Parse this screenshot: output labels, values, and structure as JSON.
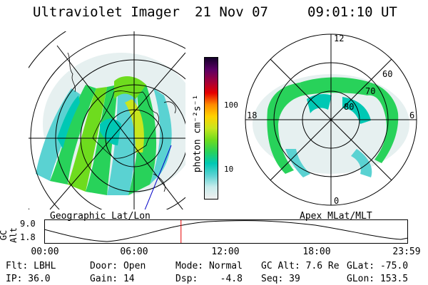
{
  "header": {
    "title": "Ultraviolet Imager",
    "date": "21 Nov 07",
    "time": "09:01:10 UT"
  },
  "colorbar": {
    "label": "photon cm⁻²s⁻¹",
    "ticks": [
      "100",
      "10"
    ],
    "colors": [
      "#f0f0f0",
      "#c8ecec",
      "#5ad2d2",
      "#00c8b4",
      "#28d25a",
      "#6edc1e",
      "#c8e61e",
      "#ffd200",
      "#ff8c00",
      "#e60000",
      "#a0003c",
      "#5a0064",
      "#14002a"
    ]
  },
  "left_panel": {
    "caption": "Geographic Lat/Lon"
  },
  "right_panel": {
    "caption": "Apex MLat/MLT",
    "lat_labels": [
      "80",
      "70",
      "60"
    ],
    "mlt_labels": [
      "12",
      "18",
      "6",
      "0"
    ]
  },
  "altitude_strip": {
    "axis_label": "GC Alt",
    "ticks": [
      "9.0",
      "1.8"
    ],
    "cursor_fraction": 0.376
  },
  "timeline": {
    "ticks": [
      "00:00",
      "06:00",
      "12:00",
      "18:00",
      "23:59"
    ]
  },
  "info": {
    "flt": "Flt: LBHL",
    "door": "Door: Open",
    "mode": "Mode: Normal",
    "gc_alt": "GC Alt: 7.6 Re",
    "glat": "GLat: -75.0",
    "ip": "IP: 36.0",
    "gain": "Gain: 14",
    "dsp": "Dsp:    -4.8",
    "seq": "Seq: 39",
    "glon": "GLon: 153.5"
  }
}
